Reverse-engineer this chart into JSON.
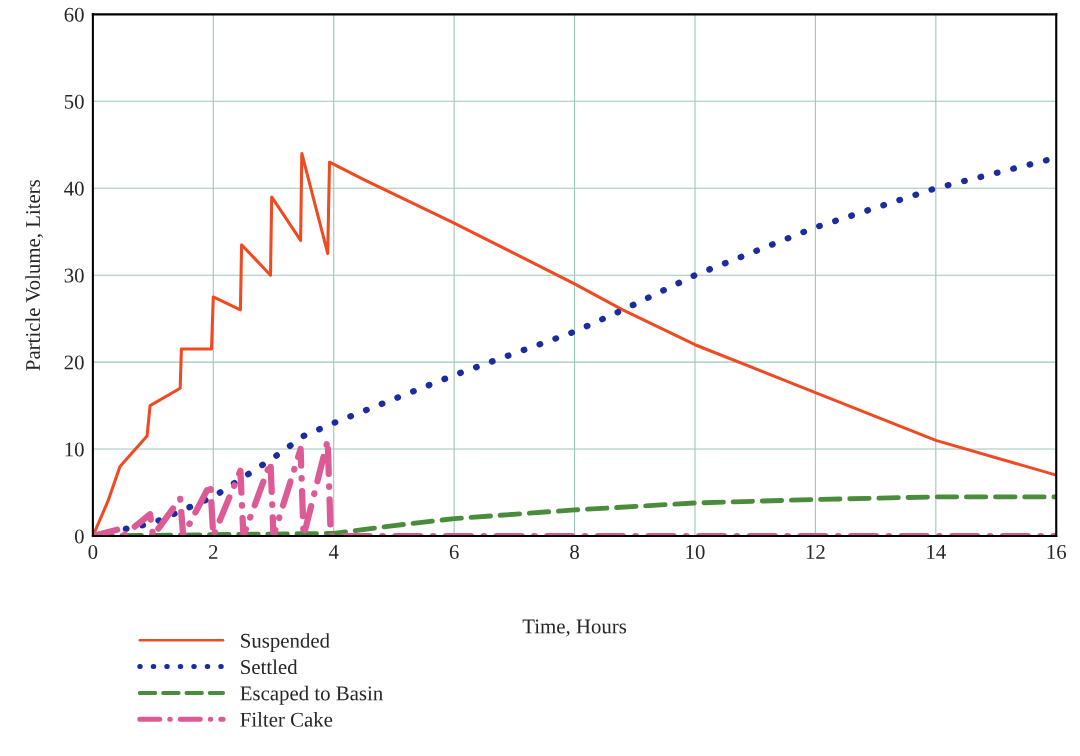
{
  "chart_data": {
    "type": "line",
    "xlabel": "Time, Hours",
    "ylabel": "Particle Volume, Liters",
    "xlim": [
      0,
      16
    ],
    "xticks": [
      0,
      2,
      4,
      6,
      8,
      10,
      12,
      14,
      16
    ],
    "ylim": [
      0,
      60
    ],
    "yticks": [
      0,
      10,
      20,
      30,
      40,
      50,
      60
    ],
    "grid": true,
    "legend": "bottom left",
    "series": [
      {
        "name": "Suspended",
        "color": "#f04a23",
        "line_style": "solid",
        "x": [
          0,
          0.25,
          0.45,
          0.9,
          0.95,
          1.45,
          1.47,
          1.97,
          2.0,
          2.45,
          2.47,
          2.95,
          2.97,
          3.45,
          3.47,
          3.9,
          3.93,
          4.5,
          6,
          8,
          8.8,
          10,
          12,
          14,
          16
        ],
        "values": [
          0,
          4,
          8,
          11.5,
          15,
          17,
          21.5,
          21.5,
          27.5,
          26,
          33.5,
          30,
          39,
          34,
          44,
          32.5,
          43,
          41,
          36,
          29,
          26,
          22,
          16.5,
          11,
          7
        ]
      },
      {
        "name": "Settled",
        "color": "#1a2ca0",
        "line_style": "dotted",
        "x": [
          0,
          1,
          2,
          3,
          3.5,
          4,
          6,
          8,
          8.8,
          10,
          12,
          14,
          16
        ],
        "values": [
          0,
          1.5,
          4.5,
          9,
          11.5,
          13,
          18.5,
          23.5,
          26,
          30,
          35.5,
          40,
          43.5
        ]
      },
      {
        "name": "Escaped to Basin",
        "color": "#4a8c3c",
        "line_style": "dashed",
        "x": [
          0,
          4,
          5,
          6,
          8,
          10,
          12,
          14,
          16
        ],
        "values": [
          0,
          0.3,
          1.2,
          2,
          3,
          3.8,
          4.2,
          4.5,
          4.5
        ]
      },
      {
        "name": "Filter Cake",
        "color": "#dc5a96",
        "line_style": "dashdot",
        "x": [
          0,
          0.45,
          0.5,
          0.95,
          1.0,
          1.45,
          1.5,
          1.95,
          2.0,
          2.45,
          2.5,
          2.95,
          3.0,
          3.45,
          3.5,
          3.9,
          3.95,
          16
        ],
        "values": [
          0,
          0.8,
          0,
          2.5,
          0,
          4.3,
          0,
          6,
          0,
          7.5,
          0,
          8.5,
          0,
          10,
          0,
          11,
          0,
          0
        ]
      }
    ]
  }
}
